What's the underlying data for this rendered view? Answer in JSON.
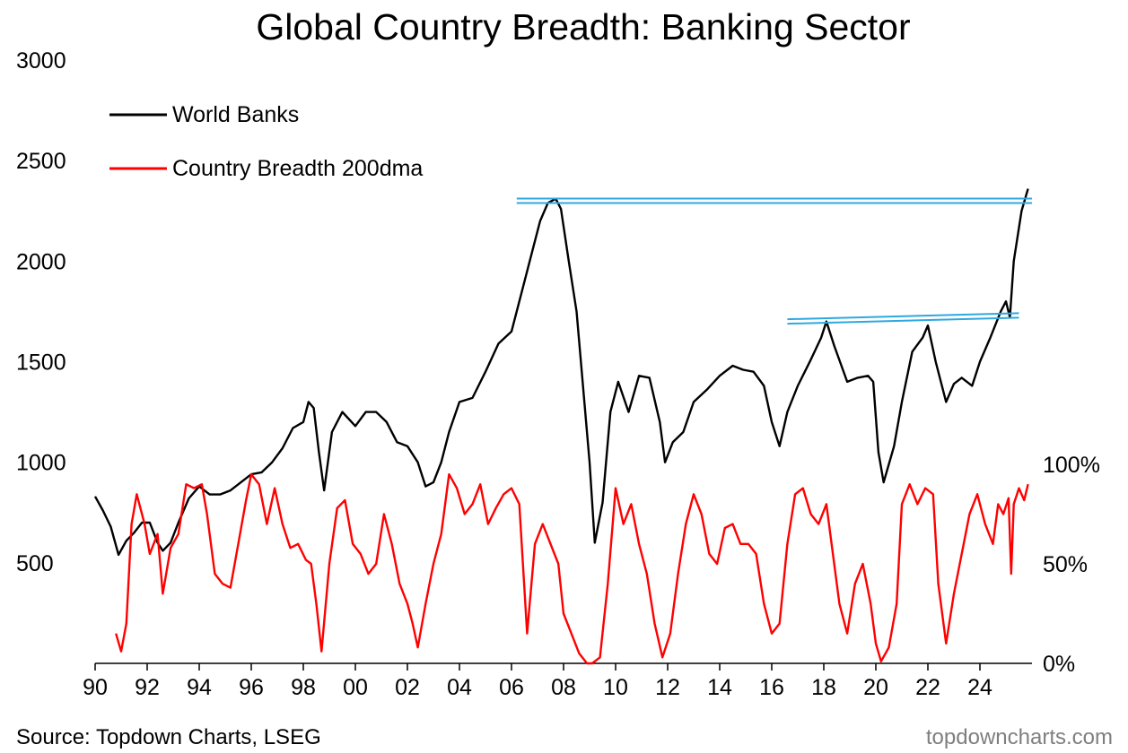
{
  "chart_data": {
    "type": "line",
    "title": "Global Country Breadth: Banking Sector",
    "x_axis": {
      "ticks": [
        "90",
        "92",
        "94",
        "96",
        "98",
        "00",
        "02",
        "04",
        "06",
        "08",
        "10",
        "12",
        "14",
        "16",
        "18",
        "20",
        "22",
        "24"
      ],
      "tick_years": [
        1990,
        1992,
        1994,
        1996,
        1998,
        2000,
        2002,
        2004,
        2006,
        2008,
        2010,
        2012,
        2014,
        2016,
        2018,
        2020,
        2022,
        2024
      ],
      "range": [
        1990,
        2026
      ]
    },
    "y_axis_left": {
      "range": [
        0,
        3000
      ],
      "ticks": [
        "500",
        "1000",
        "1500",
        "2000",
        "2500",
        "3000"
      ],
      "tick_values": [
        500,
        1000,
        1500,
        2000,
        2500,
        3000
      ]
    },
    "y_axis_right": {
      "range": [
        0,
        100
      ],
      "ticks": [
        "0%",
        "50%",
        "100%"
      ],
      "tick_values": [
        0,
        50,
        100
      ]
    },
    "legend": {
      "position": "top-left",
      "entries": [
        "World Banks",
        "Country Breadth 200dma"
      ]
    },
    "colors": {
      "world_banks": "#000000",
      "breadth": "#ff0000",
      "resistance_lines": "#2ea8e0"
    },
    "series": [
      {
        "name": "World Banks",
        "axis": "left",
        "points": [
          [
            1990.0,
            830
          ],
          [
            1990.3,
            760
          ],
          [
            1990.6,
            680
          ],
          [
            1990.9,
            540
          ],
          [
            1991.2,
            610
          ],
          [
            1991.5,
            650
          ],
          [
            1991.8,
            700
          ],
          [
            1992.1,
            700
          ],
          [
            1992.4,
            600
          ],
          [
            1992.6,
            560
          ],
          [
            1992.9,
            600
          ],
          [
            1993.2,
            700
          ],
          [
            1993.6,
            820
          ],
          [
            1994.0,
            880
          ],
          [
            1994.4,
            840
          ],
          [
            1994.8,
            840
          ],
          [
            1995.2,
            860
          ],
          [
            1995.6,
            900
          ],
          [
            1996.0,
            940
          ],
          [
            1996.4,
            950
          ],
          [
            1996.8,
            1000
          ],
          [
            1997.2,
            1070
          ],
          [
            1997.6,
            1170
          ],
          [
            1998.0,
            1200
          ],
          [
            1998.2,
            1300
          ],
          [
            1998.4,
            1270
          ],
          [
            1998.6,
            1050
          ],
          [
            1998.8,
            860
          ],
          [
            1999.1,
            1150
          ],
          [
            1999.5,
            1250
          ],
          [
            2000.0,
            1180
          ],
          [
            2000.4,
            1250
          ],
          [
            2000.8,
            1250
          ],
          [
            2001.2,
            1200
          ],
          [
            2001.6,
            1100
          ],
          [
            2002.0,
            1080
          ],
          [
            2002.4,
            1000
          ],
          [
            2002.7,
            880
          ],
          [
            2003.0,
            900
          ],
          [
            2003.3,
            1000
          ],
          [
            2003.6,
            1150
          ],
          [
            2004.0,
            1300
          ],
          [
            2004.5,
            1320
          ],
          [
            2005.0,
            1450
          ],
          [
            2005.5,
            1590
          ],
          [
            2006.0,
            1650
          ],
          [
            2006.5,
            1900
          ],
          [
            2006.8,
            2050
          ],
          [
            2007.1,
            2200
          ],
          [
            2007.4,
            2290
          ],
          [
            2007.7,
            2310
          ],
          [
            2007.9,
            2260
          ],
          [
            2008.2,
            2000
          ],
          [
            2008.5,
            1750
          ],
          [
            2008.8,
            1300
          ],
          [
            2009.0,
            1000
          ],
          [
            2009.2,
            600
          ],
          [
            2009.5,
            800
          ],
          [
            2009.8,
            1250
          ],
          [
            2010.1,
            1400
          ],
          [
            2010.5,
            1250
          ],
          [
            2010.9,
            1430
          ],
          [
            2011.3,
            1420
          ],
          [
            2011.7,
            1200
          ],
          [
            2011.9,
            1000
          ],
          [
            2012.2,
            1100
          ],
          [
            2012.6,
            1150
          ],
          [
            2013.0,
            1300
          ],
          [
            2013.5,
            1360
          ],
          [
            2014.0,
            1430
          ],
          [
            2014.5,
            1480
          ],
          [
            2014.9,
            1460
          ],
          [
            2015.3,
            1450
          ],
          [
            2015.7,
            1380
          ],
          [
            2016.0,
            1200
          ],
          [
            2016.3,
            1080
          ],
          [
            2016.6,
            1250
          ],
          [
            2017.0,
            1380
          ],
          [
            2017.5,
            1510
          ],
          [
            2017.9,
            1620
          ],
          [
            2018.1,
            1700
          ],
          [
            2018.4,
            1580
          ],
          [
            2018.9,
            1400
          ],
          [
            2019.3,
            1420
          ],
          [
            2019.7,
            1430
          ],
          [
            2019.9,
            1400
          ],
          [
            2020.1,
            1050
          ],
          [
            2020.3,
            900
          ],
          [
            2020.7,
            1080
          ],
          [
            2021.0,
            1300
          ],
          [
            2021.4,
            1550
          ],
          [
            2021.8,
            1620
          ],
          [
            2022.0,
            1680
          ],
          [
            2022.3,
            1500
          ],
          [
            2022.7,
            1300
          ],
          [
            2023.0,
            1390
          ],
          [
            2023.3,
            1420
          ],
          [
            2023.7,
            1380
          ],
          [
            2024.0,
            1500
          ],
          [
            2024.4,
            1620
          ],
          [
            2024.8,
            1750
          ],
          [
            2025.0,
            1800
          ],
          [
            2025.15,
            1720
          ],
          [
            2025.3,
            2000
          ],
          [
            2025.6,
            2250
          ],
          [
            2025.85,
            2360
          ]
        ]
      },
      {
        "name": "Country Breadth 200dma",
        "axis": "right",
        "points": [
          [
            1990.8,
            15
          ],
          [
            1991.0,
            6
          ],
          [
            1991.2,
            20
          ],
          [
            1991.4,
            70
          ],
          [
            1991.6,
            85
          ],
          [
            1991.9,
            70
          ],
          [
            1992.1,
            55
          ],
          [
            1992.4,
            65
          ],
          [
            1992.6,
            35
          ],
          [
            1992.9,
            58
          ],
          [
            1993.2,
            65
          ],
          [
            1993.5,
            90
          ],
          [
            1993.8,
            88
          ],
          [
            1994.1,
            90
          ],
          [
            1994.3,
            75
          ],
          [
            1994.6,
            45
          ],
          [
            1994.9,
            40
          ],
          [
            1995.2,
            38
          ],
          [
            1995.5,
            60
          ],
          [
            1995.8,
            82
          ],
          [
            1996.0,
            95
          ],
          [
            1996.3,
            90
          ],
          [
            1996.6,
            70
          ],
          [
            1996.9,
            88
          ],
          [
            1997.2,
            70
          ],
          [
            1997.5,
            58
          ],
          [
            1997.8,
            60
          ],
          [
            1998.1,
            52
          ],
          [
            1998.3,
            50
          ],
          [
            1998.5,
            30
          ],
          [
            1998.7,
            6
          ],
          [
            1999.0,
            50
          ],
          [
            1999.3,
            78
          ],
          [
            1999.6,
            82
          ],
          [
            1999.9,
            60
          ],
          [
            2000.2,
            55
          ],
          [
            2000.5,
            45
          ],
          [
            2000.8,
            50
          ],
          [
            2001.1,
            75
          ],
          [
            2001.4,
            60
          ],
          [
            2001.7,
            40
          ],
          [
            2002.0,
            30
          ],
          [
            2002.2,
            20
          ],
          [
            2002.4,
            8
          ],
          [
            2002.7,
            30
          ],
          [
            2003.0,
            50
          ],
          [
            2003.3,
            65
          ],
          [
            2003.6,
            95
          ],
          [
            2003.9,
            88
          ],
          [
            2004.2,
            75
          ],
          [
            2004.5,
            80
          ],
          [
            2004.8,
            90
          ],
          [
            2005.1,
            70
          ],
          [
            2005.4,
            78
          ],
          [
            2005.7,
            85
          ],
          [
            2006.0,
            88
          ],
          [
            2006.3,
            80
          ],
          [
            2006.6,
            15
          ],
          [
            2006.9,
            60
          ],
          [
            2007.2,
            70
          ],
          [
            2007.5,
            60
          ],
          [
            2007.8,
            50
          ],
          [
            2008.0,
            25
          ],
          [
            2008.3,
            15
          ],
          [
            2008.6,
            5
          ],
          [
            2008.9,
            0
          ],
          [
            2009.1,
            0
          ],
          [
            2009.4,
            3
          ],
          [
            2009.7,
            40
          ],
          [
            2010.0,
            88
          ],
          [
            2010.3,
            70
          ],
          [
            2010.6,
            80
          ],
          [
            2010.9,
            60
          ],
          [
            2011.2,
            45
          ],
          [
            2011.5,
            20
          ],
          [
            2011.8,
            3
          ],
          [
            2012.1,
            15
          ],
          [
            2012.4,
            45
          ],
          [
            2012.7,
            70
          ],
          [
            2013.0,
            85
          ],
          [
            2013.3,
            75
          ],
          [
            2013.6,
            55
          ],
          [
            2013.9,
            50
          ],
          [
            2014.2,
            68
          ],
          [
            2014.5,
            70
          ],
          [
            2014.8,
            60
          ],
          [
            2015.1,
            60
          ],
          [
            2015.4,
            55
          ],
          [
            2015.7,
            30
          ],
          [
            2016.0,
            15
          ],
          [
            2016.3,
            20
          ],
          [
            2016.6,
            60
          ],
          [
            2016.9,
            85
          ],
          [
            2017.2,
            88
          ],
          [
            2017.5,
            75
          ],
          [
            2017.8,
            70
          ],
          [
            2018.1,
            80
          ],
          [
            2018.3,
            60
          ],
          [
            2018.6,
            30
          ],
          [
            2018.9,
            15
          ],
          [
            2019.2,
            40
          ],
          [
            2019.5,
            50
          ],
          [
            2019.8,
            30
          ],
          [
            2020.0,
            10
          ],
          [
            2020.2,
            1
          ],
          [
            2020.5,
            8
          ],
          [
            2020.8,
            30
          ],
          [
            2021.0,
            80
          ],
          [
            2021.3,
            90
          ],
          [
            2021.6,
            80
          ],
          [
            2021.9,
            88
          ],
          [
            2022.2,
            85
          ],
          [
            2022.4,
            40
          ],
          [
            2022.7,
            10
          ],
          [
            2023.0,
            35
          ],
          [
            2023.3,
            55
          ],
          [
            2023.6,
            75
          ],
          [
            2023.9,
            85
          ],
          [
            2024.2,
            70
          ],
          [
            2024.5,
            60
          ],
          [
            2024.7,
            80
          ],
          [
            2024.9,
            75
          ],
          [
            2025.1,
            83
          ],
          [
            2025.2,
            45
          ],
          [
            2025.3,
            80
          ],
          [
            2025.5,
            88
          ],
          [
            2025.7,
            82
          ],
          [
            2025.85,
            90
          ]
        ]
      }
    ],
    "annotations": [
      {
        "type": "double_line",
        "x": [
          2006.2,
          2026.0
        ],
        "y": [
          2300,
          2300
        ],
        "axis": "left"
      },
      {
        "type": "double_line",
        "x": [
          2016.6,
          2025.5
        ],
        "y": [
          1700,
          1730
        ],
        "axis": "left"
      }
    ]
  },
  "footer": {
    "source": "Source: Topdown Charts, LSEG",
    "watermark": "topdowncharts.com"
  }
}
